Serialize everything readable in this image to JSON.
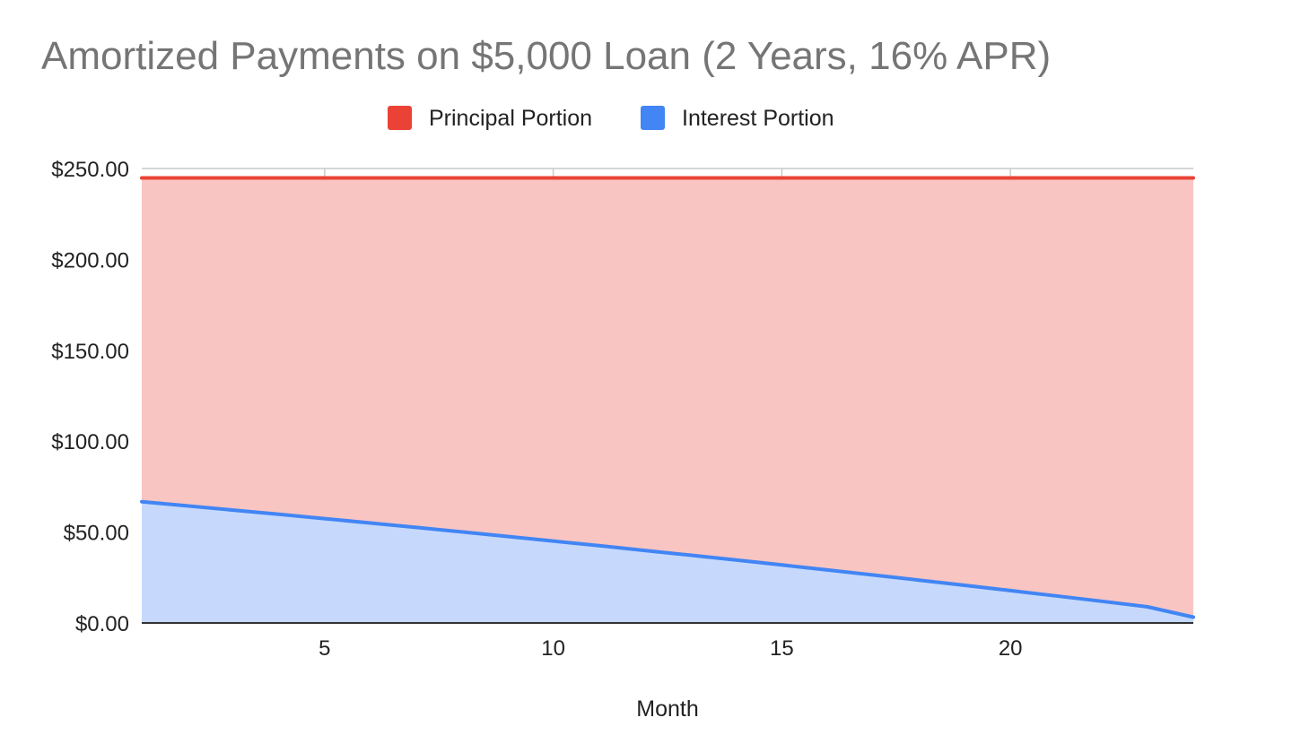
{
  "chart_data": {
    "type": "area",
    "stacked": true,
    "title": "Amortized Payments on $5,000 Loan (2 Years, 16% APR)",
    "xlabel": "Month",
    "ylabel": "",
    "x": [
      1,
      2,
      3,
      4,
      5,
      6,
      7,
      8,
      9,
      10,
      11,
      12,
      13,
      14,
      15,
      16,
      17,
      18,
      19,
      20,
      21,
      22,
      23,
      24
    ],
    "series": [
      {
        "name": "Interest Portion",
        "color": "#4285f4",
        "fill": "#c6d9fc",
        "values": [
          66.67,
          64.4,
          62.09,
          59.76,
          57.39,
          54.99,
          52.56,
          50.1,
          47.6,
          45.07,
          42.5,
          39.9,
          37.27,
          34.6,
          31.89,
          29.15,
          26.37,
          23.56,
          20.7,
          17.81,
          14.88,
          11.91,
          8.9,
          3.2
        ]
      },
      {
        "name": "Principal Portion",
        "color": "#ea4335",
        "fill": "#f8c5c2",
        "values": [
          178.15,
          180.42,
          182.73,
          185.06,
          187.43,
          189.83,
          192.26,
          194.72,
          197.22,
          199.75,
          202.32,
          204.92,
          207.55,
          210.22,
          212.93,
          215.67,
          218.45,
          221.26,
          224.12,
          227.01,
          229.94,
          232.91,
          235.92,
          241.62
        ]
      }
    ],
    "xlim": [
      1,
      24
    ],
    "ylim": [
      0,
      250
    ],
    "x_ticks": [
      5,
      10,
      15,
      20
    ],
    "y_ticks": [
      0,
      50,
      100,
      150,
      200,
      250
    ],
    "y_tick_labels": [
      "$0.00",
      "$50.00",
      "$100.00",
      "$150.00",
      "$200.00",
      "$250.00"
    ],
    "legend": {
      "position": "top",
      "entries": [
        "Principal Portion",
        "Interest Portion"
      ]
    },
    "grid": true
  }
}
